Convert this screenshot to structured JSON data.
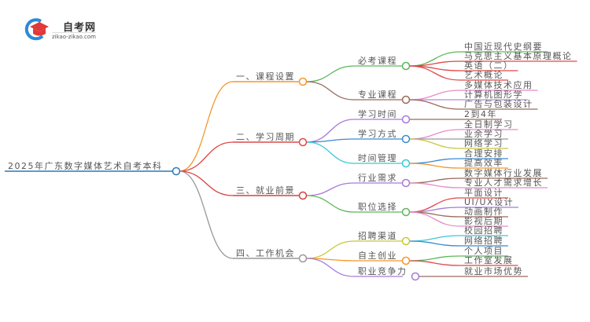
{
  "logo": {
    "title": "自考网",
    "url": "zikao-zikao.com",
    "colors": {
      "ring": "#2a8ad8",
      "cap": "#e03a3a"
    }
  },
  "mindmap": {
    "root": "2025年广东数字媒体艺术自考本科",
    "root_color": "#2a7ab8",
    "children": [
      {
        "label": "一、课程设置",
        "color": "#f5962a",
        "children": [
          {
            "label": "必考课程",
            "color": "#5cb85c",
            "children": [
              {
                "label": "中国近现代史纲要",
                "color": "#5cb85c"
              },
              {
                "label": "马克思主义基本原理概论",
                "color": "#e04848"
              },
              {
                "label": "英语（二）",
                "color": "#e04848"
              },
              {
                "label": "艺术概论",
                "color": "#e04848"
              }
            ]
          },
          {
            "label": "专业课程",
            "color": "#9a6a5a",
            "children": [
              {
                "label": "多媒体技术应用",
                "color": "#e88ac8"
              },
              {
                "label": "计算机图形学",
                "color": "#b48ae0"
              },
              {
                "label": "广告与包装设计",
                "color": "#9a6a5a"
              }
            ]
          }
        ]
      },
      {
        "label": "二、学习周期",
        "color": "#e04848",
        "children": [
          {
            "label": "学习时间",
            "color": "#a87ad8",
            "children": [
              {
                "label": "2到4年",
                "color": "#9a6a5a"
              }
            ]
          },
          {
            "label": "学习方式",
            "color": "#3a8ad0",
            "children": [
              {
                "label": "全日制学习",
                "color": "#e88ac8"
              },
              {
                "label": "业余学习",
                "color": "#999999"
              },
              {
                "label": "网络学习",
                "color": "#c8c83a"
              }
            ]
          },
          {
            "label": "时间管理",
            "color": "#3ac8d8",
            "children": [
              {
                "label": "合理安排",
                "color": "#3a8ad0"
              },
              {
                "label": "提高效率",
                "color": "#f5962a"
              }
            ]
          }
        ]
      },
      {
        "label": "三、就业前景",
        "color": "#d84040",
        "children": [
          {
            "label": "行业需求",
            "color": "#a87ad8",
            "children": [
              {
                "label": "数字媒体行业发展",
                "color": "#9a6a5a"
              },
              {
                "label": "专业人才需求增长",
                "color": "#e88ac8"
              }
            ]
          },
          {
            "label": "职位选择",
            "color": "#5cb85c",
            "children": [
              {
                "label": "平面设计",
                "color": "#e04848"
              },
              {
                "label": "UI/UX设计",
                "color": "#a87ad8"
              },
              {
                "label": "动画制作",
                "color": "#9a6a5a"
              },
              {
                "label": "影视后期",
                "color": "#e88ac8"
              }
            ]
          }
        ]
      },
      {
        "label": "四、工作机会",
        "color": "#999999",
        "children": [
          {
            "label": "招聘渠道",
            "color": "#c8c83a",
            "children": [
              {
                "label": "校园招聘",
                "color": "#3ac8d8"
              },
              {
                "label": "网络招聘",
                "color": "#3a8ad0"
              }
            ]
          },
          {
            "label": "自主创业",
            "color": "#f5962a",
            "children": [
              {
                "label": "个人项目",
                "color": "#5cb85c"
              },
              {
                "label": "工作室发展",
                "color": "#e04848"
              }
            ]
          },
          {
            "label": "职业竞争力",
            "color": "#a87ad8",
            "children": [
              {
                "label": "就业市场优势",
                "color": "#9a6a5a"
              }
            ]
          }
        ]
      }
    ]
  }
}
